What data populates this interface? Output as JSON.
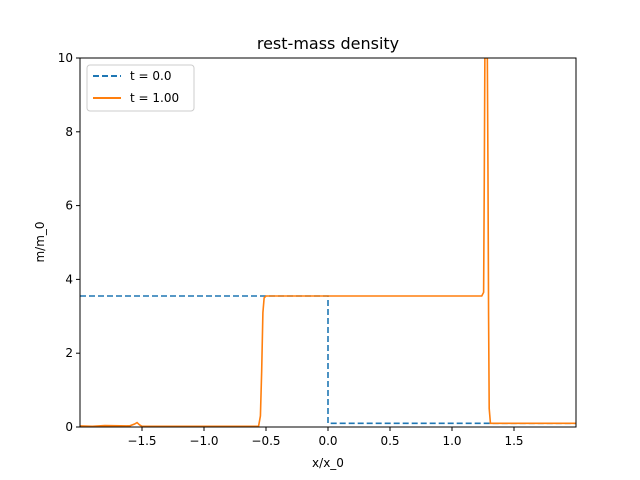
{
  "chart_data": {
    "type": "line",
    "title": "rest-mass density",
    "xlabel": "x/x_0",
    "ylabel": "m/m_0",
    "xlim": [
      -2.0,
      2.0
    ],
    "ylim": [
      0,
      10
    ],
    "xticks": [
      -1.5,
      -1.0,
      -0.5,
      0.0,
      0.5,
      1.0,
      1.5
    ],
    "xtick_labels": [
      "−1.5",
      "−1.0",
      "−0.5",
      "0.0",
      "0.5",
      "1.0",
      "1.5"
    ],
    "yticks": [
      0,
      2,
      4,
      6,
      8,
      10
    ],
    "ytick_labels": [
      "0",
      "2",
      "4",
      "6",
      "8",
      "10"
    ],
    "grid": false,
    "legend_position": "top-left",
    "series": [
      {
        "name": "t = 0.0",
        "color": "#1f77b4",
        "dash": true,
        "x": [
          -2.0,
          0.0,
          0.0,
          2.0
        ],
        "y": [
          3.55,
          3.55,
          0.1,
          0.1
        ]
      },
      {
        "name": "t = 1.00",
        "color": "#ff7f0e",
        "dash": false,
        "x": [
          -2.0,
          -1.9,
          -1.8,
          -1.6,
          -1.56,
          -1.54,
          -1.52,
          -1.5,
          -1.2,
          -0.8,
          -0.56,
          -0.545,
          -0.535,
          -0.525,
          -0.515,
          -0.5,
          -0.45,
          0.0,
          0.5,
          1.0,
          1.24,
          1.255,
          1.26,
          1.265,
          1.27,
          1.275,
          1.28,
          1.285,
          1.29,
          1.295,
          1.3,
          1.31,
          1.5,
          1.8,
          1.95,
          2.0
        ],
        "y": [
          0.03,
          0.02,
          0.04,
          0.03,
          0.08,
          0.12,
          0.06,
          0.02,
          0.02,
          0.02,
          0.02,
          0.3,
          1.5,
          3.1,
          3.5,
          3.55,
          3.55,
          3.55,
          3.55,
          3.55,
          3.55,
          3.65,
          6.5,
          10.0,
          10.0,
          10.0,
          10.0,
          10.0,
          7.0,
          3.0,
          0.5,
          0.1,
          0.1,
          0.1,
          0.1,
          0.1
        ]
      }
    ]
  }
}
